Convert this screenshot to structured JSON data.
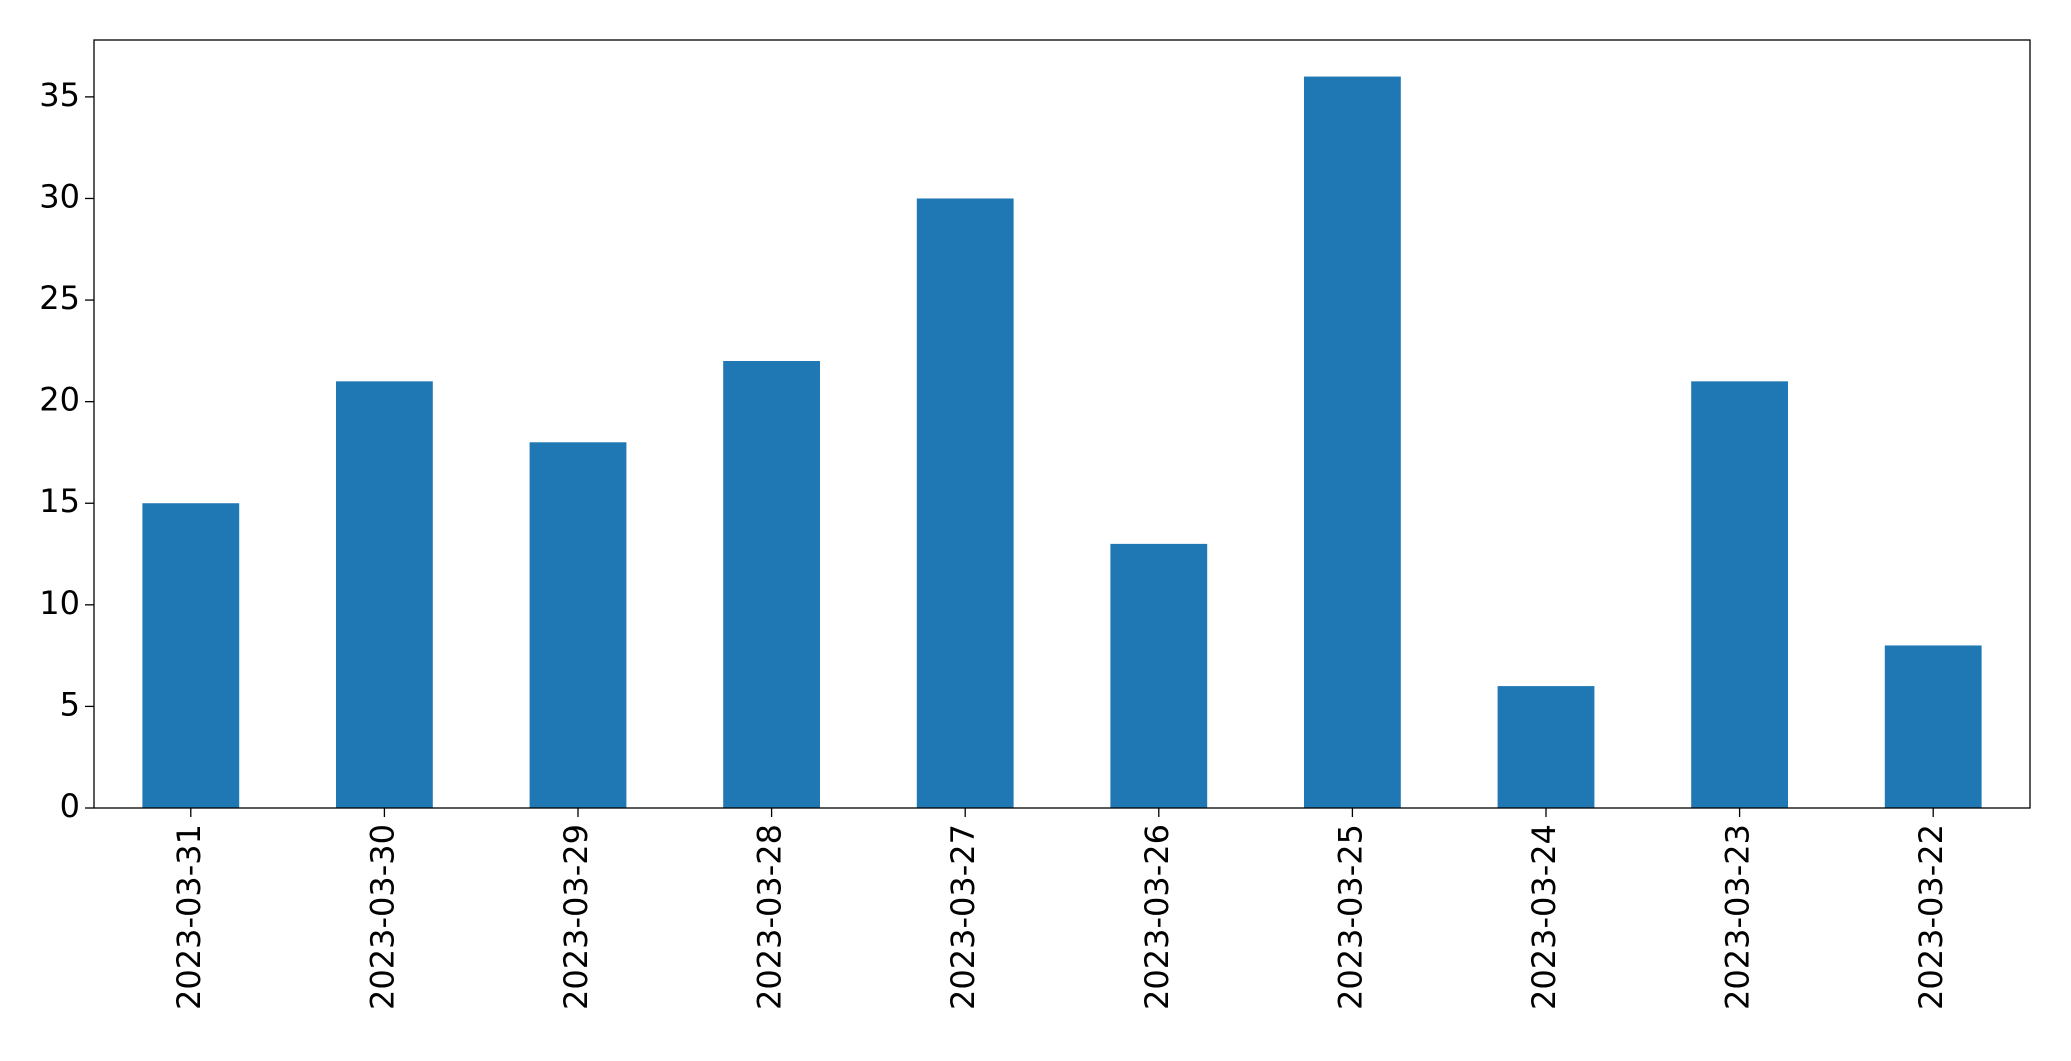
{
  "chart_data": {
    "type": "bar",
    "categories": [
      "2023-03-31",
      "2023-03-30",
      "2023-03-29",
      "2023-03-28",
      "2023-03-27",
      "2023-03-26",
      "2023-03-25",
      "2023-03-24",
      "2023-03-23",
      "2023-03-22"
    ],
    "values": [
      15,
      21,
      18,
      22,
      30,
      13,
      36,
      6,
      21,
      8
    ],
    "color": "#1f77b4",
    "ylim": [
      0,
      37.8
    ],
    "yticks": [
      0,
      5,
      10,
      15,
      20,
      25,
      30,
      35
    ],
    "grid": false
  }
}
